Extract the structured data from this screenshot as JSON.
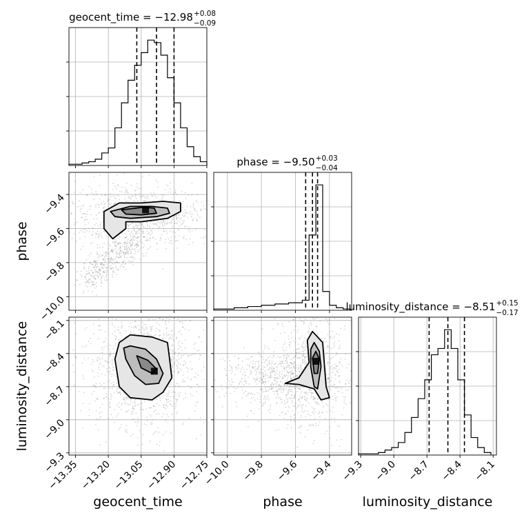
{
  "chart_data": {
    "type": "corner",
    "grid": true,
    "parameters": [
      {
        "name": "geocent_time",
        "median": -12.98,
        "plus": 0.08,
        "minus": 0.09,
        "title_main": "geocent_time = −12.98",
        "title_plus": "+0.08",
        "title_minus": "−0.09",
        "range": [
          -13.38,
          -12.75
        ],
        "ticks": [
          -13.35,
          -13.2,
          -13.05,
          -12.9,
          -12.75
        ],
        "tick_labels": [
          "−13.35",
          "−13.20",
          "−13.05",
          "−12.90",
          "−12.75"
        ],
        "axis_label": "geocent_time",
        "quantiles": [
          -13.07,
          -12.98,
          -12.9
        ]
      },
      {
        "name": "phase",
        "median": -9.5,
        "plus": 0.03,
        "minus": 0.04,
        "title_main": "phase = −9.50",
        "title_plus": "+0.03",
        "title_minus": "−0.04",
        "range": [
          -10.08,
          -9.27
        ],
        "ticks": [
          -10.0,
          -9.8,
          -9.6,
          -9.4
        ],
        "tick_labels": [
          "−10.0",
          "−9.8",
          "−9.6",
          "−9.4"
        ],
        "axis_label": "phase",
        "quantiles": [
          -9.54,
          -9.5,
          -9.47
        ]
      },
      {
        "name": "luminosity_distance",
        "median": -8.51,
        "plus": 0.15,
        "minus": 0.17,
        "title_main": "luminosity_distance = −8.51",
        "title_plus": "+0.15",
        "title_minus": "−0.17",
        "range": [
          -9.32,
          -8.07
        ],
        "ticks": [
          -9.3,
          -9.0,
          -8.7,
          -8.4,
          -8.1
        ],
        "tick_labels": [
          "−9.3",
          "−9.0",
          "−8.7",
          "−8.4",
          "−8.1"
        ],
        "axis_label": "luminosity_distance",
        "quantiles": [
          -8.68,
          -8.51,
          -8.36
        ]
      }
    ],
    "histograms": [
      {
        "param": "geocent_time",
        "bin_edges": [
          -13.38,
          -13.35,
          -13.32,
          -13.29,
          -13.26,
          -13.23,
          -13.2,
          -13.17,
          -13.14,
          -13.11,
          -13.08,
          -13.05,
          -13.02,
          -12.99,
          -12.96,
          -12.93,
          -12.9,
          -12.87,
          -12.84,
          -12.81,
          -12.78,
          -12.75
        ],
        "counts": [
          1,
          1,
          2,
          3,
          5,
          10,
          14,
          30,
          50,
          68,
          80,
          90,
          100,
          98,
          88,
          70,
          50,
          30,
          15,
          7,
          3
        ]
      },
      {
        "param": "phase",
        "bin_edges": [
          -10.08,
          -10.04,
          -10.0,
          -9.96,
          -9.92,
          -9.88,
          -9.84,
          -9.8,
          -9.76,
          -9.72,
          -9.68,
          -9.64,
          -9.6,
          -9.56,
          -9.52,
          -9.48,
          -9.44,
          -9.4,
          -9.36,
          -9.32,
          -9.28
        ],
        "counts": [
          1,
          1,
          1,
          2,
          2,
          3,
          3,
          4,
          4,
          5,
          5,
          6,
          6,
          8,
          60,
          100,
          15,
          4,
          2,
          1
        ]
      },
      {
        "param": "luminosity_distance",
        "bin_edges": [
          -9.32,
          -9.26,
          -9.2,
          -9.14,
          -9.08,
          -9.02,
          -8.96,
          -8.9,
          -8.84,
          -8.78,
          -8.72,
          -8.66,
          -8.6,
          -8.54,
          -8.48,
          -8.42,
          -8.36,
          -8.3,
          -8.24,
          -8.18,
          -8.12
        ],
        "counts": [
          1,
          1,
          1,
          2,
          4,
          6,
          10,
          18,
          30,
          45,
          60,
          80,
          85,
          100,
          85,
          60,
          32,
          14,
          6,
          2
        ]
      }
    ],
    "panels_2d": [
      {
        "x": "geocent_time",
        "y": "phase",
        "mode": [
          -13.03,
          -9.49
        ],
        "contours": [
          [
            [
              -13.22,
              -9.5
            ],
            [
              -13.15,
              -9.45
            ],
            [
              -13.05,
              -9.45
            ],
            [
              -12.95,
              -9.44
            ],
            [
              -12.87,
              -9.45
            ],
            [
              -12.87,
              -9.5
            ],
            [
              -12.93,
              -9.54
            ],
            [
              -13.05,
              -9.56
            ],
            [
              -13.12,
              -9.56
            ],
            [
              -13.12,
              -9.6
            ],
            [
              -13.18,
              -9.66
            ],
            [
              -13.22,
              -9.6
            ]
          ],
          [
            [
              -13.19,
              -9.5
            ],
            [
              -13.1,
              -9.47
            ],
            [
              -13.0,
              -9.47
            ],
            [
              -12.93,
              -9.48
            ],
            [
              -12.92,
              -9.51
            ],
            [
              -12.98,
              -9.53
            ],
            [
              -13.1,
              -9.54
            ],
            [
              -13.17,
              -9.53
            ]
          ],
          [
            [
              -13.14,
              -9.49
            ],
            [
              -13.04,
              -9.475
            ],
            [
              -12.99,
              -9.48
            ],
            [
              -12.98,
              -9.51
            ],
            [
              -13.05,
              -9.52
            ],
            [
              -13.12,
              -9.515
            ]
          ]
        ]
      },
      {
        "x": "geocent_time",
        "y": "luminosity_distance",
        "mode": [
          -12.99,
          -8.56
        ],
        "contours": [
          [
            [
              -13.1,
              -8.23
            ],
            [
              -13.0,
              -8.25
            ],
            [
              -12.93,
              -8.3
            ],
            [
              -12.92,
              -8.45
            ],
            [
              -12.91,
              -8.62
            ],
            [
              -12.95,
              -8.75
            ],
            [
              -13.0,
              -8.82
            ],
            [
              -13.1,
              -8.8
            ],
            [
              -13.15,
              -8.7
            ],
            [
              -13.17,
              -8.45
            ],
            [
              -13.15,
              -8.3
            ]
          ],
          [
            [
              -13.1,
              -8.33
            ],
            [
              -13.03,
              -8.36
            ],
            [
              -12.98,
              -8.45
            ],
            [
              -12.95,
              -8.58
            ],
            [
              -12.97,
              -8.67
            ],
            [
              -13.03,
              -8.68
            ],
            [
              -13.08,
              -8.6
            ],
            [
              -13.12,
              -8.45
            ],
            [
              -13.13,
              -8.35
            ]
          ],
          [
            [
              -13.07,
              -8.42
            ],
            [
              -13.02,
              -8.46
            ],
            [
              -12.98,
              -8.54
            ],
            [
              -13.0,
              -8.58
            ],
            [
              -13.05,
              -8.53
            ]
          ]
        ]
      },
      {
        "x": "phase",
        "y": "luminosity_distance",
        "mode": [
          -9.48,
          -8.47
        ],
        "contours": [
          [
            [
              -9.5,
              -8.2
            ],
            [
              -9.44,
              -8.3
            ],
            [
              -9.42,
              -8.7
            ],
            [
              -9.4,
              -8.8
            ],
            [
              -9.45,
              -8.82
            ],
            [
              -9.49,
              -8.72
            ],
            [
              -9.58,
              -8.68
            ],
            [
              -9.66,
              -8.67
            ],
            [
              -9.58,
              -8.62
            ],
            [
              -9.52,
              -8.48
            ],
            [
              -9.53,
              -8.28
            ]
          ],
          [
            [
              -9.49,
              -8.3
            ],
            [
              -9.46,
              -8.38
            ],
            [
              -9.45,
              -8.52
            ],
            [
              -9.47,
              -8.72
            ],
            [
              -9.49,
              -8.7
            ],
            [
              -9.51,
              -8.52
            ],
            [
              -9.51,
              -8.36
            ]
          ],
          [
            [
              -9.48,
              -8.38
            ],
            [
              -9.46,
              -8.45
            ],
            [
              -9.47,
              -8.58
            ],
            [
              -9.49,
              -8.58
            ],
            [
              -9.5,
              -8.44
            ]
          ]
        ]
      }
    ]
  }
}
